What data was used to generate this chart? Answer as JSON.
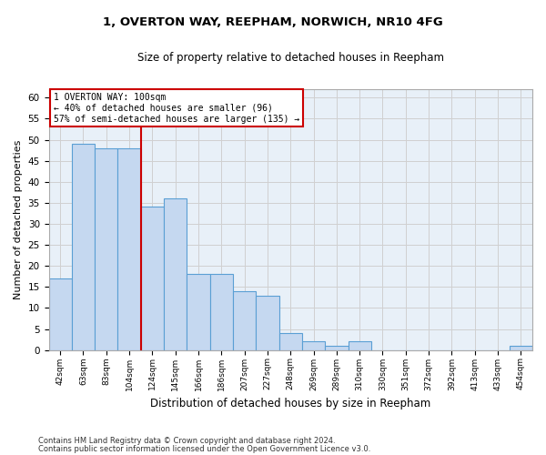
{
  "title1": "1, OVERTON WAY, REEPHAM, NORWICH, NR10 4FG",
  "title2": "Size of property relative to detached houses in Reepham",
  "xlabel": "Distribution of detached houses by size in Reepham",
  "ylabel": "Number of detached properties",
  "categories": [
    "42sqm",
    "63sqm",
    "83sqm",
    "104sqm",
    "124sqm",
    "145sqm",
    "166sqm",
    "186sqm",
    "207sqm",
    "227sqm",
    "248sqm",
    "269sqm",
    "289sqm",
    "310sqm",
    "330sqm",
    "351sqm",
    "372sqm",
    "392sqm",
    "413sqm",
    "433sqm",
    "454sqm"
  ],
  "values": [
    17,
    49,
    48,
    48,
    34,
    36,
    18,
    18,
    14,
    13,
    4,
    2,
    1,
    2,
    0,
    0,
    0,
    0,
    0,
    0,
    1
  ],
  "bar_color": "#c5d8f0",
  "bar_edge_color": "#5a9fd4",
  "highlight_index": 3,
  "red_line_color": "#cc0000",
  "ylim": [
    0,
    62
  ],
  "yticks": [
    0,
    5,
    10,
    15,
    20,
    25,
    30,
    35,
    40,
    45,
    50,
    55,
    60
  ],
  "annotation_text": "1 OVERTON WAY: 100sqm\n← 40% of detached houses are smaller (96)\n57% of semi-detached houses are larger (135) →",
  "footnote1": "Contains HM Land Registry data © Crown copyright and database right 2024.",
  "footnote2": "Contains public sector information licensed under the Open Government Licence v3.0.",
  "bg_color": "#ffffff",
  "grid_color": "#d0d0d0",
  "ax_bg_color": "#e8f0f8"
}
